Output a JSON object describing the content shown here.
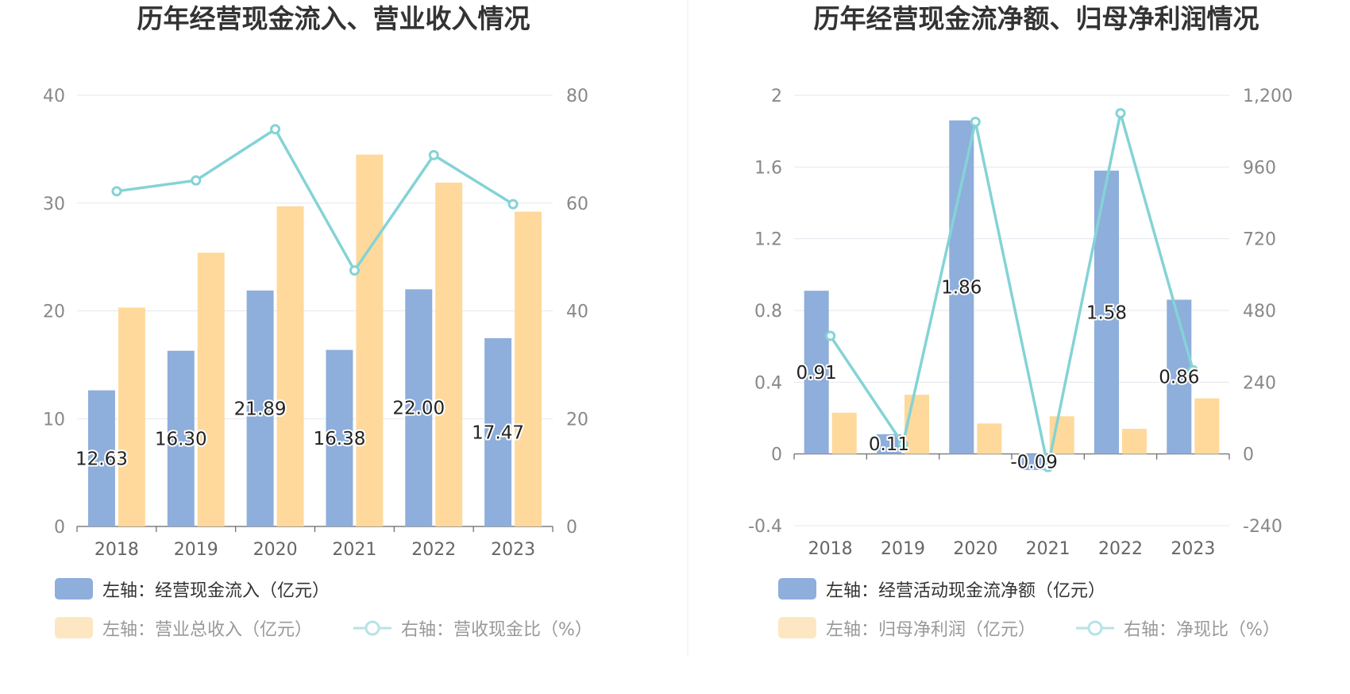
{
  "chart_data": [
    {
      "type": "bar",
      "title": "历年经营现金流入、营业收入情况",
      "categories": [
        "2018",
        "2019",
        "2020",
        "2021",
        "2022",
        "2023"
      ],
      "left_axis": {
        "ticks": [
          "0",
          "10",
          "20",
          "30",
          "40"
        ],
        "range": [
          0,
          40
        ]
      },
      "right_axis": {
        "ticks": [
          "0",
          "20",
          "40",
          "60",
          "80"
        ],
        "range": [
          0,
          80
        ]
      },
      "series": [
        {
          "name": "左轴：经营现金流入（亿元）",
          "kind": "bar",
          "axis": "left",
          "color": "#8eaedb",
          "values": [
            12.63,
            16.3,
            21.89,
            16.38,
            22.0,
            17.47
          ],
          "labels": [
            "12.63",
            "16.30",
            "21.89",
            "16.38",
            "22.00",
            "17.47"
          ]
        },
        {
          "name": "左轴：营业总收入（亿元）",
          "kind": "bar",
          "axis": "left",
          "color": "#fed99b",
          "values": [
            20.3,
            25.4,
            29.7,
            34.5,
            31.9,
            29.2
          ]
        },
        {
          "name": "右轴：营收现金比（%）",
          "kind": "line",
          "axis": "right",
          "color": "#84d3d6",
          "values": [
            62.2,
            64.2,
            73.7,
            47.5,
            68.9,
            59.8
          ]
        }
      ],
      "legend": [
        "左轴：经营现金流入（亿元）",
        "左轴：营业总收入（亿元）",
        "右轴：营收现金比（%）"
      ]
    },
    {
      "type": "bar",
      "title": "历年经营现金流净额、归母净利润情况",
      "categories": [
        "2018",
        "2019",
        "2020",
        "2021",
        "2022",
        "2023"
      ],
      "left_axis": {
        "ticks": [
          "-0.4",
          "0",
          "0.4",
          "0.8",
          "1.2",
          "1.6",
          "2"
        ],
        "range": [
          -0.4,
          2
        ]
      },
      "right_axis": {
        "ticks": [
          "-240",
          "0",
          "240",
          "480",
          "720",
          "960",
          "1,200"
        ],
        "range": [
          -240,
          1200
        ]
      },
      "series": [
        {
          "name": "左轴：经营活动现金流净额（亿元）",
          "kind": "bar",
          "axis": "left",
          "color": "#8eaedb",
          "values": [
            0.91,
            0.11,
            1.86,
            -0.09,
            1.58,
            0.86
          ],
          "labels": [
            "0.91",
            "0.11",
            "1.86",
            "-0.09",
            "1.58",
            "0.86"
          ]
        },
        {
          "name": "左轴：归母净利润（亿元）",
          "kind": "bar",
          "axis": "left",
          "color": "#fed99b",
          "values": [
            0.23,
            0.33,
            0.17,
            0.21,
            0.14,
            0.31
          ]
        },
        {
          "name": "右轴：净现比（%）",
          "kind": "line",
          "axis": "right",
          "color": "#84d3d6",
          "values": [
            395,
            33,
            1111,
            -44,
            1140,
            280
          ]
        }
      ],
      "legend": [
        "左轴：经营活动现金流净额（亿元）",
        "左轴：归母净利润（亿元）",
        "右轴：净现比（%）"
      ]
    }
  ]
}
